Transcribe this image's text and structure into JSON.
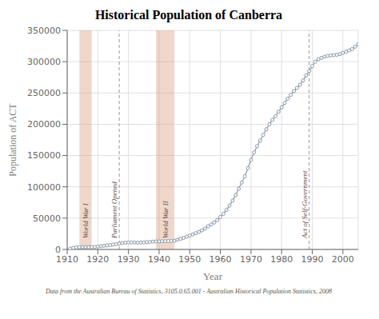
{
  "chart_data": {
    "type": "line",
    "title": "Historical Population of Canberra",
    "xlabel": "Year",
    "ylabel": "Population of ACT",
    "footnote": "Data from the Australian Bureau of Statistics, 3105.0.65.001 - Australian Historical Population Statistics, 2008",
    "color": "#8899aa",
    "marker": "circle",
    "grid": true,
    "xlim": [
      1910,
      2005
    ],
    "ylim": [
      0,
      350000
    ],
    "xticks": [
      1910,
      1920,
      1930,
      1940,
      1950,
      1960,
      1970,
      1980,
      1990,
      2000
    ],
    "yticks": [
      0,
      50000,
      100000,
      150000,
      200000,
      250000,
      300000,
      350000
    ],
    "shaded_regions": [
      {
        "xmin": 1914,
        "xmax": 1918,
        "color": "#d4957a",
        "label": "World War I"
      },
      {
        "xmin": 1939,
        "xmax": 1945,
        "color": "#d4957a",
        "label": "World War II"
      }
    ],
    "vlines": [
      {
        "x": 1927,
        "label": "Parliament Opened"
      },
      {
        "x": 1989,
        "label": "Act of Self-Government"
      }
    ],
    "x": [
      1911,
      1912,
      1913,
      1914,
      1915,
      1916,
      1917,
      1918,
      1919,
      1920,
      1921,
      1922,
      1923,
      1924,
      1925,
      1926,
      1927,
      1928,
      1929,
      1930,
      1931,
      1932,
      1933,
      1934,
      1935,
      1936,
      1937,
      1938,
      1939,
      1940,
      1941,
      1942,
      1943,
      1944,
      1945,
      1946,
      1947,
      1948,
      1949,
      1950,
      1951,
      1952,
      1953,
      1954,
      1955,
      1956,
      1957,
      1958,
      1959,
      1960,
      1961,
      1962,
      1963,
      1964,
      1965,
      1966,
      1967,
      1968,
      1969,
      1970,
      1971,
      1972,
      1973,
      1974,
      1975,
      1976,
      1977,
      1978,
      1979,
      1980,
      1981,
      1982,
      1983,
      1984,
      1985,
      1986,
      1987,
      1988,
      1989,
      1990,
      1991,
      1992,
      1993,
      1994,
      1995,
      1996,
      1997,
      1998,
      1999,
      2000,
      2001,
      2002,
      2003,
      2004,
      2005
    ],
    "values": [
      1455,
      2500,
      3200,
      3700,
      3900,
      3800,
      3600,
      3700,
      4000,
      4500,
      5200,
      5900,
      6500,
      7100,
      7800,
      8400,
      9400,
      10200,
      10800,
      11100,
      11200,
      11000,
      10800,
      11100,
      11300,
      11600,
      12000,
      12400,
      12700,
      12900,
      13100,
      13200,
      13400,
      13600,
      14000,
      15500,
      17000,
      18500,
      20500,
      22000,
      24000,
      26000,
      28000,
      30500,
      33500,
      37000,
      40000,
      43000,
      47000,
      52000,
      57000,
      63000,
      70000,
      78000,
      87000,
      97000,
      107000,
      117000,
      130000,
      143000,
      155000,
      165000,
      174000,
      183000,
      192000,
      200000,
      207000,
      213000,
      220000,
      227000,
      234000,
      241000,
      247000,
      253000,
      258000,
      263000,
      270000,
      278000,
      285000,
      293000,
      300000,
      304000,
      306000,
      308000,
      309000,
      310000,
      310500,
      311000,
      312000,
      314000,
      316000,
      318000,
      320000,
      324000,
      328000
    ]
  }
}
